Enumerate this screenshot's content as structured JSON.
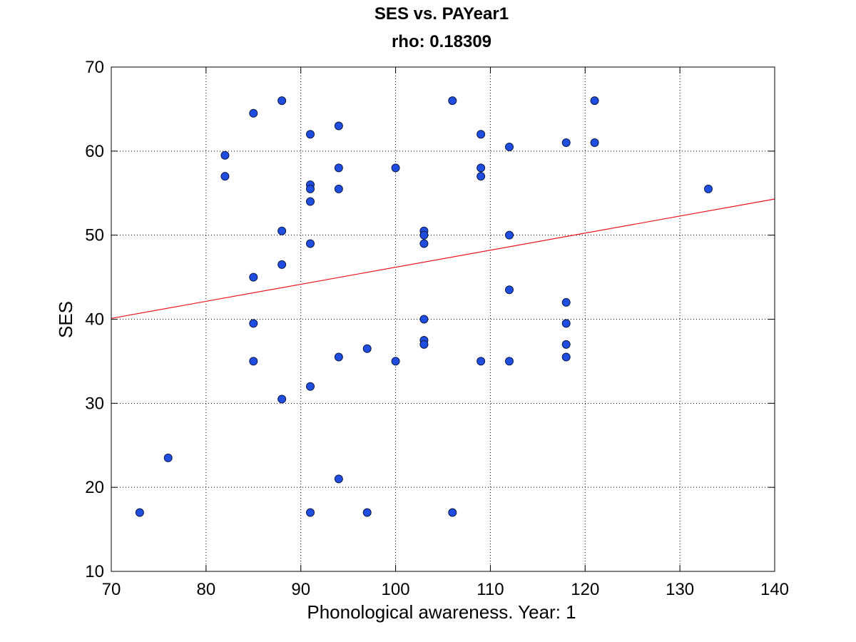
{
  "chart_data": {
    "type": "scatter",
    "title": "SES vs. PAYear1",
    "subtitle": "rho: 0.18309",
    "xlabel": "Phonological awareness. Year: 1",
    "ylabel": "SES",
    "xlim": [
      70,
      140
    ],
    "ylim": [
      10,
      70
    ],
    "xticks": [
      "70",
      "80",
      "90",
      "100",
      "110",
      "120",
      "130",
      "140"
    ],
    "yticks": [
      "10",
      "20",
      "30",
      "40",
      "50",
      "60",
      "70"
    ],
    "grid": true,
    "points": [
      {
        "x": 73,
        "y": 17
      },
      {
        "x": 76,
        "y": 23.5
      },
      {
        "x": 82,
        "y": 59.5
      },
      {
        "x": 82,
        "y": 57
      },
      {
        "x": 85,
        "y": 64.5
      },
      {
        "x": 85,
        "y": 45
      },
      {
        "x": 85,
        "y": 39.5
      },
      {
        "x": 85,
        "y": 35
      },
      {
        "x": 88,
        "y": 66
      },
      {
        "x": 88,
        "y": 50.5
      },
      {
        "x": 88,
        "y": 46.5
      },
      {
        "x": 88,
        "y": 30.5
      },
      {
        "x": 91,
        "y": 62
      },
      {
        "x": 91,
        "y": 56
      },
      {
        "x": 91,
        "y": 55.5
      },
      {
        "x": 91,
        "y": 54
      },
      {
        "x": 91,
        "y": 49
      },
      {
        "x": 91,
        "y": 32
      },
      {
        "x": 91,
        "y": 17
      },
      {
        "x": 94,
        "y": 63
      },
      {
        "x": 94,
        "y": 58
      },
      {
        "x": 94,
        "y": 55.5
      },
      {
        "x": 94,
        "y": 35.5
      },
      {
        "x": 94,
        "y": 21
      },
      {
        "x": 97,
        "y": 36.5
      },
      {
        "x": 97,
        "y": 17
      },
      {
        "x": 100,
        "y": 58
      },
      {
        "x": 100,
        "y": 35
      },
      {
        "x": 103,
        "y": 50.5
      },
      {
        "x": 103,
        "y": 50
      },
      {
        "x": 103,
        "y": 49
      },
      {
        "x": 103,
        "y": 40
      },
      {
        "x": 103,
        "y": 37.5
      },
      {
        "x": 103,
        "y": 37
      },
      {
        "x": 106,
        "y": 66
      },
      {
        "x": 106,
        "y": 17
      },
      {
        "x": 109,
        "y": 62
      },
      {
        "x": 109,
        "y": 58
      },
      {
        "x": 109,
        "y": 57
      },
      {
        "x": 109,
        "y": 35
      },
      {
        "x": 112,
        "y": 60.5
      },
      {
        "x": 112,
        "y": 50
      },
      {
        "x": 112,
        "y": 43.5
      },
      {
        "x": 112,
        "y": 35
      },
      {
        "x": 118,
        "y": 61
      },
      {
        "x": 118,
        "y": 42
      },
      {
        "x": 118,
        "y": 39.5
      },
      {
        "x": 118,
        "y": 37
      },
      {
        "x": 118,
        "y": 35.5
      },
      {
        "x": 121,
        "y": 66
      },
      {
        "x": 121,
        "y": 61
      },
      {
        "x": 133,
        "y": 55.5
      }
    ],
    "fit_line": {
      "x": [
        70,
        140
      ],
      "y": [
        40.1,
        54.3
      ]
    },
    "colors": {
      "marker": "#1f4de0",
      "marker_edge": "#0a1a4a",
      "fit": "#e8141e"
    }
  }
}
